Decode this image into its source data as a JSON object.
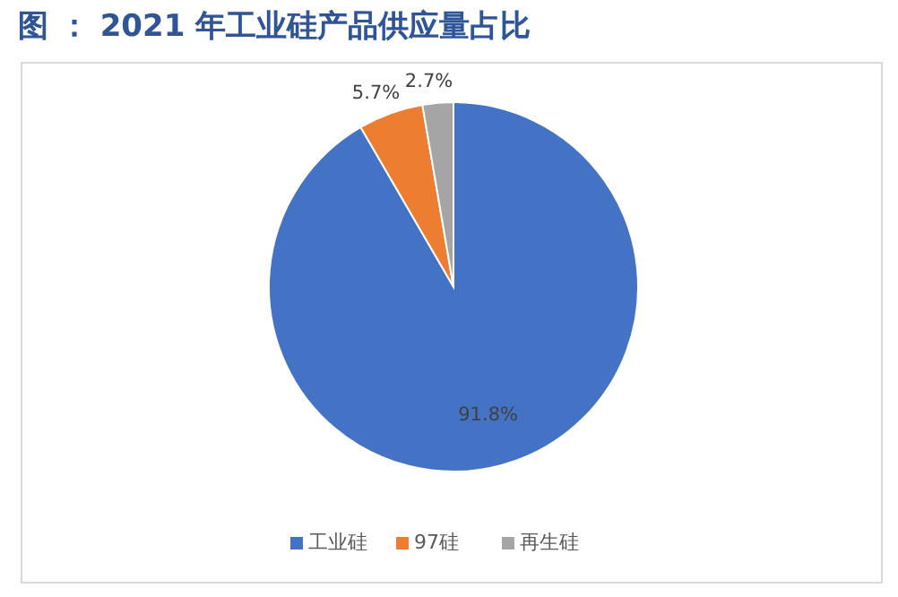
{
  "chart_data": {
    "type": "pie",
    "title": "图 ： 2021 年工业硅产品供应量占比",
    "categories": [
      "工业硅",
      "97硅",
      "再生硅"
    ],
    "values": [
      91.8,
      5.7,
      2.7
    ],
    "colors": [
      "#4472c4",
      "#ed7d31",
      "#a5a5a5"
    ],
    "value_labels": [
      "91.8%",
      "5.7%",
      "2.7%"
    ],
    "legend": "bottom"
  }
}
